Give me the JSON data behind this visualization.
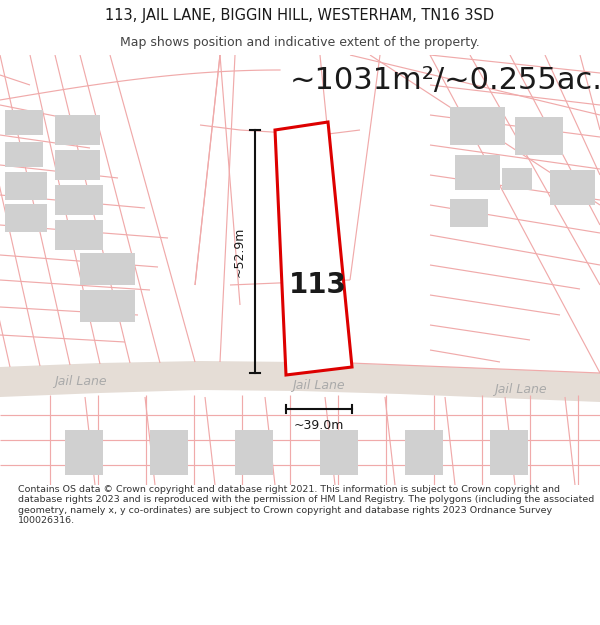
{
  "title_line1": "113, JAIL LANE, BIGGIN HILL, WESTERHAM, TN16 3SD",
  "title_line2": "Map shows position and indicative extent of the property.",
  "area_text": "~1031m²/~0.255ac.",
  "property_number": "113",
  "dim_vertical": "~52.9m",
  "dim_horizontal": "~39.0m",
  "road_label_left": "Jail Lane",
  "road_label_center": "Jail Lane",
  "road_label_right": "Jail Lane",
  "footer_text": "Contains OS data © Crown copyright and database right 2021. This information is subject to Crown copyright and database rights 2023 and is reproduced with the permission of HM Land Registry. The polygons (including the associated geometry, namely x, y co-ordinates) are subject to Crown copyright and database rights 2023 Ordnance Survey 100026316.",
  "bg_color": "#ffffff",
  "road_color": "#e5ddd6",
  "plot_line_color": "#dd0000",
  "map_line_color": "#f0aaaa",
  "building_color": "#d0d0d0",
  "road_label_color": "#aaaaaa",
  "dim_line_color": "#111111",
  "text_dark": "#1a1a1a",
  "text_mid": "#444444",
  "title_fs": 10.5,
  "subtitle_fs": 9.0,
  "area_fs": 22,
  "prop_num_fs": 20,
  "footer_fs": 6.8
}
